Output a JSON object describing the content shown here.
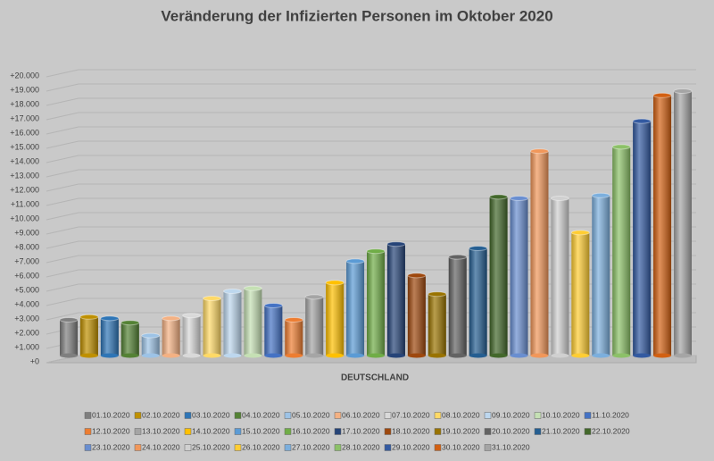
{
  "chart_data": {
    "type": "bar",
    "title": "Veränderung der Infizierten Personen im Oktober 2020",
    "categories": [
      "DEUTSCHLAND"
    ],
    "ylim": [
      0,
      20000
    ],
    "yticks": [
      {
        "value": 0,
        "label": "+0"
      },
      {
        "value": 1000,
        "label": "+1.000"
      },
      {
        "value": 2000,
        "label": "+2.000"
      },
      {
        "value": 3000,
        "label": "+3.000"
      },
      {
        "value": 4000,
        "label": "+4.000"
      },
      {
        "value": 5000,
        "label": "+5.000"
      },
      {
        "value": 6000,
        "label": "+6.000"
      },
      {
        "value": 7000,
        "label": "+7.000"
      },
      {
        "value": 8000,
        "label": "+8.000"
      },
      {
        "value": 9000,
        "label": "+9.000"
      },
      {
        "value": 10000,
        "label": "+10.000"
      },
      {
        "value": 11000,
        "label": "+11.000"
      },
      {
        "value": 12000,
        "label": "+12.000"
      },
      {
        "value": 13000,
        "label": "+13.000"
      },
      {
        "value": 14000,
        "label": "+14.000"
      },
      {
        "value": 15000,
        "label": "+15.000"
      },
      {
        "value": 16000,
        "label": "+16.000"
      },
      {
        "value": 17000,
        "label": "+17.000"
      },
      {
        "value": 18000,
        "label": "+18.000"
      },
      {
        "value": 19000,
        "label": "+19.000"
      },
      {
        "value": 20000,
        "label": "+20.000"
      }
    ],
    "grid": true,
    "legend": "bottom",
    "series": [
      {
        "name": "01.10.2020",
        "color": "#7f7f7f",
        "values": [
          2500
        ]
      },
      {
        "name": "02.10.2020",
        "color": "#bf9000",
        "values": [
          2700
        ]
      },
      {
        "name": "03.10.2020",
        "color": "#2e75b6",
        "values": [
          2600
        ]
      },
      {
        "name": "04.10.2020",
        "color": "#548235",
        "values": [
          2300
        ]
      },
      {
        "name": "05.10.2020",
        "color": "#9dc3e6",
        "values": [
          1400
        ]
      },
      {
        "name": "06.10.2020",
        "color": "#f4b183",
        "values": [
          2600
        ]
      },
      {
        "name": "07.10.2020",
        "color": "#d9d9d9",
        "values": [
          2800
        ]
      },
      {
        "name": "08.10.2020",
        "color": "#ffd966",
        "values": [
          4000
        ]
      },
      {
        "name": "09.10.2020",
        "color": "#bdd7ee",
        "values": [
          4500
        ]
      },
      {
        "name": "10.10.2020",
        "color": "#c5e0b4",
        "values": [
          4700
        ]
      },
      {
        "name": "11.10.2020",
        "color": "#4472c4",
        "values": [
          3500
        ]
      },
      {
        "name": "12.10.2020",
        "color": "#ed7d31",
        "values": [
          2500
        ]
      },
      {
        "name": "13.10.2020",
        "color": "#a5a5a5",
        "values": [
          4100
        ]
      },
      {
        "name": "14.10.2020",
        "color": "#ffc000",
        "values": [
          5100
        ]
      },
      {
        "name": "15.10.2020",
        "color": "#5b9bd5",
        "values": [
          6600
        ]
      },
      {
        "name": "16.10.2020",
        "color": "#70ad47",
        "values": [
          7300
        ]
      },
      {
        "name": "17.10.2020",
        "color": "#264478",
        "values": [
          7800
        ]
      },
      {
        "name": "18.10.2020",
        "color": "#9e480e",
        "values": [
          5600
        ]
      },
      {
        "name": "19.10.2020",
        "color": "#997300",
        "values": [
          4300
        ]
      },
      {
        "name": "20.10.2020",
        "color": "#636363",
        "values": [
          6900
        ]
      },
      {
        "name": "21.10.2020",
        "color": "#255e91",
        "values": [
          7500
        ]
      },
      {
        "name": "22.10.2020",
        "color": "#43682b",
        "values": [
          11100
        ]
      },
      {
        "name": "23.10.2020",
        "color": "#698ed0",
        "values": [
          11000
        ]
      },
      {
        "name": "24.10.2020",
        "color": "#f1975a",
        "values": [
          14300
        ]
      },
      {
        "name": "25.10.2020",
        "color": "#d0d0d0",
        "values": [
          11000
        ]
      },
      {
        "name": "26.10.2020",
        "color": "#ffcd33",
        "values": [
          8600
        ]
      },
      {
        "name": "27.10.2020",
        "color": "#7cafdd",
        "values": [
          11200
        ]
      },
      {
        "name": "28.10.2020",
        "color": "#8cc168",
        "values": [
          14600
        ]
      },
      {
        "name": "29.10.2020",
        "color": "#335aa1",
        "values": [
          16400
        ]
      },
      {
        "name": "30.10.2020",
        "color": "#d26012",
        "values": [
          18200
        ]
      },
      {
        "name": "31.10.2020",
        "color": "#a5a5a5",
        "values": [
          18500
        ]
      }
    ]
  }
}
